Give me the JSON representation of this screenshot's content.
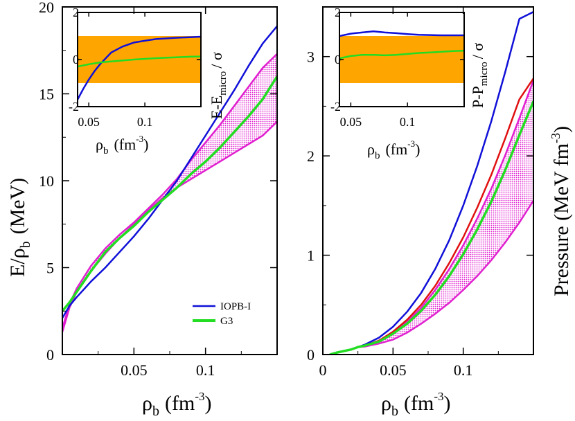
{
  "chart_data": [
    {
      "type": "line",
      "panel": "left",
      "xlabel_base": "ρ",
      "xlabel_sub": "b",
      "xlabel_unit_pre": "(fm",
      "xlabel_unit_sup": "-3",
      "xlabel_unit_post": ")",
      "ylabel_base": "E/ρ",
      "ylabel_sub": "b",
      "ylabel_unit": "(MeV)",
      "xlim": [
        0.0,
        0.15
      ],
      "ylim": [
        0,
        20
      ],
      "xticks": [
        {
          "v": 0.05,
          "label": "0.05"
        },
        {
          "v": 0.1,
          "label": "0.1"
        }
      ],
      "yticks": [
        {
          "v": 0,
          "label": "0"
        },
        {
          "v": 5,
          "label": "5"
        },
        {
          "v": 10,
          "label": "10"
        },
        {
          "v": 15,
          "label": "15"
        },
        {
          "v": 20,
          "label": "20"
        }
      ],
      "legend_position": "lower-right",
      "legend": [
        {
          "name": "IOPB-I",
          "color": "#1010d8"
        },
        {
          "name": "G3",
          "color": "#22dd22"
        }
      ],
      "band": {
        "name": "micro band",
        "color": "#e020d0",
        "x": [
          0.0,
          0.005,
          0.01,
          0.02,
          0.03,
          0.04,
          0.05,
          0.06,
          0.07,
          0.08,
          0.09,
          0.1,
          0.11,
          0.12,
          0.13,
          0.14,
          0.15
        ],
        "lower": [
          1.3,
          2.7,
          3.6,
          4.8,
          5.8,
          6.7,
          7.5,
          8.3,
          9.0,
          9.6,
          10.1,
          10.6,
          11.1,
          11.6,
          12.1,
          12.6,
          13.4
        ],
        "upper": [
          1.5,
          2.9,
          3.8,
          5.1,
          6.1,
          6.9,
          7.6,
          8.4,
          9.2,
          10.1,
          11.2,
          12.2,
          13.2,
          14.3,
          15.4,
          16.5,
          17.3
        ]
      },
      "series": [
        {
          "name": "IOPB-I",
          "color": "#1010d8",
          "x": [
            0.0,
            0.005,
            0.01,
            0.02,
            0.03,
            0.04,
            0.05,
            0.06,
            0.07,
            0.08,
            0.09,
            0.1,
            0.11,
            0.12,
            0.13,
            0.14,
            0.15
          ],
          "y": [
            2.1,
            2.8,
            3.3,
            4.2,
            5.0,
            5.9,
            6.8,
            7.8,
            8.9,
            10.0,
            11.3,
            12.6,
            13.9,
            15.2,
            16.6,
            17.9,
            18.9
          ]
        },
        {
          "name": "G3",
          "color": "#22dd22",
          "x": [
            0.0,
            0.005,
            0.01,
            0.02,
            0.03,
            0.04,
            0.05,
            0.06,
            0.07,
            0.08,
            0.09,
            0.1,
            0.11,
            0.12,
            0.13,
            0.14,
            0.15
          ],
          "y": [
            2.5,
            3.0,
            3.6,
            4.8,
            5.9,
            6.7,
            7.4,
            8.2,
            8.9,
            9.6,
            10.4,
            11.1,
            11.9,
            12.8,
            13.7,
            14.7,
            16.0
          ]
        }
      ],
      "inset": {
        "xlabel_base": "ρ",
        "xlabel_sub": "b",
        "xlabel_unit_pre": "(fm",
        "xlabel_unit_sup": "-3",
        "xlabel_unit_post": ")",
        "ylabel_pre": "E-E",
        "ylabel_sub": "micro",
        "ylabel_post": "/ σ",
        "xlim": [
          0.04,
          0.15
        ],
        "ylim": [
          -2,
          2
        ],
        "xticks": [
          {
            "v": 0.05,
            "label": "0.05"
          },
          {
            "v": 0.1,
            "label": "0.1"
          }
        ],
        "yticks": [
          {
            "v": -2,
            "label": "-2"
          },
          {
            "v": 0,
            "label": "0"
          },
          {
            "v": 2,
            "label": "2"
          }
        ],
        "shade": {
          "lower": -1,
          "upper": 1,
          "color": "#ffa500"
        },
        "series": [
          {
            "name": "IOPB-I",
            "color": "#1010d8",
            "x": [
              0.04,
              0.045,
              0.05,
              0.055,
              0.06,
              0.065,
              0.07,
              0.08,
              0.09,
              0.1,
              0.11,
              0.12,
              0.13,
              0.14,
              0.15
            ],
            "y": [
              -1.7,
              -1.25,
              -0.85,
              -0.5,
              -0.2,
              0.05,
              0.3,
              0.55,
              0.72,
              0.8,
              0.87,
              0.9,
              0.93,
              0.95,
              0.97
            ]
          },
          {
            "name": "G3",
            "color": "#22dd22",
            "x": [
              0.04,
              0.05,
              0.06,
              0.07,
              0.08,
              0.09,
              0.1,
              0.11,
              0.12,
              0.13,
              0.14,
              0.15
            ],
            "y": [
              -0.3,
              -0.2,
              -0.12,
              -0.08,
              -0.04,
              0.0,
              0.03,
              0.06,
              0.08,
              0.1,
              0.12,
              0.13
            ]
          }
        ]
      }
    },
    {
      "type": "line",
      "panel": "right",
      "xlabel_base": "ρ",
      "xlabel_sub": "b",
      "xlabel_unit_pre": "(fm",
      "xlabel_unit_sup": "-3",
      "xlabel_unit_post": ")",
      "ylabel": "Pressure (MeV fm",
      "ylabel_sup": "-3",
      "ylabel_post": ")",
      "xlim": [
        0.0,
        0.15
      ],
      "ylim": [
        0,
        3.5
      ],
      "xticks": [
        {
          "v": 0,
          "label": "0"
        },
        {
          "v": 0.05,
          "label": "0.05"
        },
        {
          "v": 0.1,
          "label": "0.1"
        }
      ],
      "yticks": [
        {
          "v": 0,
          "label": "0"
        },
        {
          "v": 1,
          "label": "1"
        },
        {
          "v": 2,
          "label": "2"
        },
        {
          "v": 3,
          "label": "3"
        }
      ],
      "band": {
        "name": "micro band",
        "color": "#e020d0",
        "x": [
          0.005,
          0.01,
          0.02,
          0.025,
          0.03,
          0.04,
          0.05,
          0.06,
          0.07,
          0.08,
          0.09,
          0.1,
          0.11,
          0.12,
          0.13,
          0.14,
          0.15
        ],
        "lower": [
          0.0,
          0.02,
          0.05,
          0.075,
          0.08,
          0.11,
          0.15,
          0.22,
          0.31,
          0.41,
          0.52,
          0.65,
          0.79,
          0.95,
          1.13,
          1.33,
          1.55
        ],
        "upper": [
          0.0,
          0.02,
          0.05,
          0.075,
          0.09,
          0.14,
          0.22,
          0.33,
          0.47,
          0.65,
          0.86,
          1.1,
          1.37,
          1.67,
          2.01,
          2.38,
          2.76
        ]
      },
      "series": [
        {
          "name": "IOPB-I",
          "color": "#1010d8",
          "x": [
            0.005,
            0.01,
            0.02,
            0.025,
            0.03,
            0.04,
            0.05,
            0.06,
            0.07,
            0.08,
            0.09,
            0.1,
            0.11,
            0.12,
            0.13,
            0.14,
            0.15
          ],
          "y": [
            0.0,
            0.02,
            0.05,
            0.075,
            0.1,
            0.17,
            0.28,
            0.43,
            0.62,
            0.86,
            1.15,
            1.5,
            1.9,
            2.35,
            2.85,
            3.38,
            3.45
          ]
        },
        {
          "name": "red",
          "color": "#e01010",
          "x": [
            0.005,
            0.01,
            0.02,
            0.025,
            0.03,
            0.04,
            0.05,
            0.06,
            0.07,
            0.08,
            0.09,
            0.1,
            0.11,
            0.12,
            0.13,
            0.14,
            0.15
          ],
          "y": [
            0.0,
            0.02,
            0.05,
            0.075,
            0.09,
            0.14,
            0.23,
            0.35,
            0.5,
            0.69,
            0.92,
            1.18,
            1.48,
            1.81,
            2.18,
            2.57,
            2.78
          ]
        },
        {
          "name": "G3",
          "color": "#22dd22",
          "x": [
            0.005,
            0.01,
            0.02,
            0.025,
            0.03,
            0.04,
            0.05,
            0.06,
            0.07,
            0.08,
            0.09,
            0.1,
            0.11,
            0.12,
            0.13,
            0.14,
            0.15
          ],
          "y": [
            0.0,
            0.02,
            0.05,
            0.075,
            0.09,
            0.13,
            0.21,
            0.31,
            0.44,
            0.6,
            0.79,
            1.01,
            1.26,
            1.54,
            1.86,
            2.21,
            2.55
          ]
        }
      ],
      "inset": {
        "xlabel_base": "ρ",
        "xlabel_sub": "b",
        "xlabel_unit_pre": "(fm",
        "xlabel_unit_sup": "-3",
        "xlabel_unit_post": ")",
        "ylabel_pre": "P-P",
        "ylabel_sub": "micro",
        "ylabel_post": "/ σ",
        "xlim": [
          0.04,
          0.15
        ],
        "ylim": [
          -2,
          2
        ],
        "xticks": [
          {
            "v": 0.05,
            "label": "0.05"
          },
          {
            "v": 0.1,
            "label": "0.1"
          }
        ],
        "yticks": [
          {
            "v": -2,
            "label": "-2"
          },
          {
            "v": 0,
            "label": "0"
          },
          {
            "v": 2,
            "label": "2"
          }
        ],
        "shade": {
          "lower": -1,
          "upper": 1,
          "color": "#ffa500"
        },
        "series": [
          {
            "name": "IOPB-I",
            "color": "#1010d8",
            "x": [
              0.04,
              0.05,
              0.06,
              0.07,
              0.08,
              0.09,
              0.1,
              0.11,
              0.12,
              0.13,
              0.14,
              0.15
            ],
            "y": [
              1.0,
              1.1,
              1.15,
              1.2,
              1.15,
              1.12,
              1.08,
              1.05,
              1.04,
              1.03,
              1.03,
              1.03
            ]
          },
          {
            "name": "G3",
            "color": "#22dd22",
            "x": [
              0.04,
              0.05,
              0.06,
              0.07,
              0.08,
              0.09,
              0.1,
              0.11,
              0.12,
              0.13,
              0.14,
              0.15
            ],
            "y": [
              0.05,
              0.15,
              0.2,
              0.2,
              0.18,
              0.2,
              0.24,
              0.28,
              0.3,
              0.33,
              0.36,
              0.38
            ]
          }
        ]
      }
    }
  ]
}
